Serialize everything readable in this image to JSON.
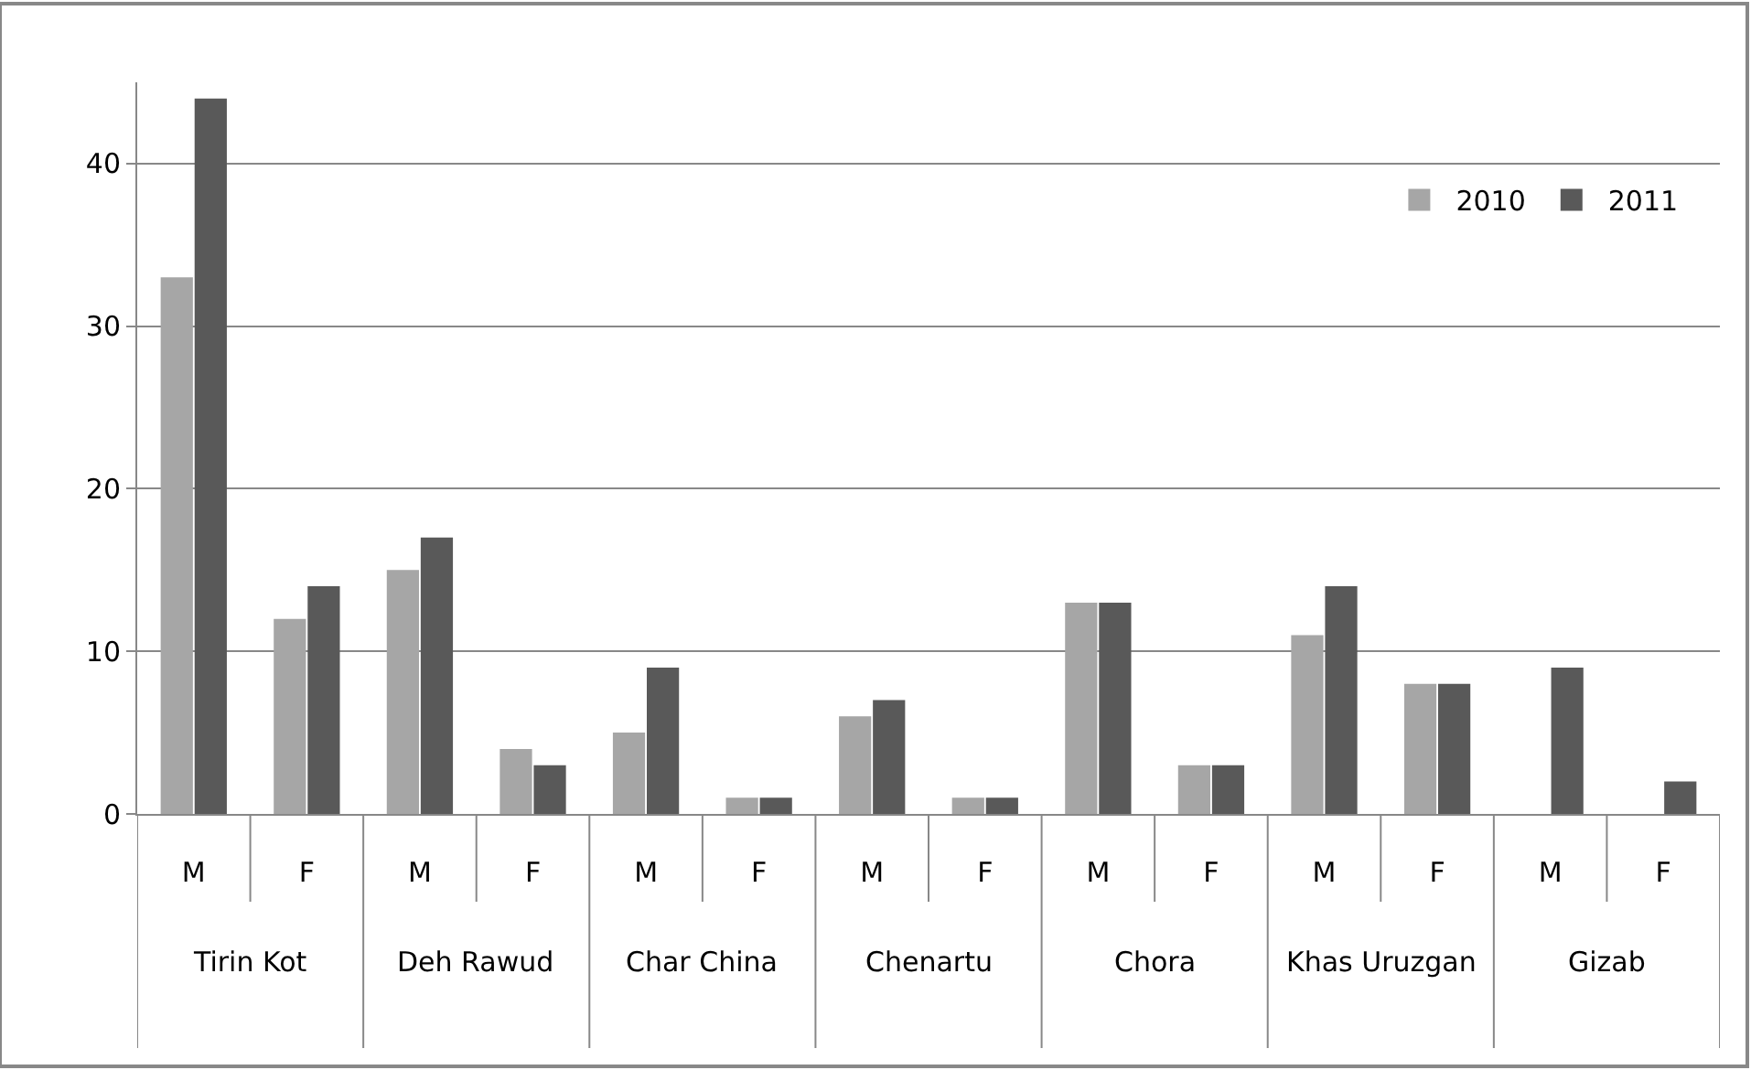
{
  "chart_data": {
    "type": "bar",
    "categories": [
      "M",
      "F",
      "M",
      "F",
      "M",
      "F",
      "M",
      "F",
      "M",
      "F",
      "M",
      "F",
      "M",
      "F"
    ],
    "series": [
      {
        "name": "2010",
        "color": "#a6a6a6",
        "values": [
          33,
          12,
          15,
          4,
          5,
          1,
          6,
          1,
          13,
          3,
          11,
          8,
          null,
          null
        ]
      },
      {
        "name": "2011",
        "color": "#595959",
        "values": [
          44,
          14,
          17,
          3,
          9,
          1,
          7,
          1,
          13,
          3,
          14,
          8,
          9,
          2
        ]
      }
    ],
    "annotations": [
      "Tirin Kot",
      "Deh Rawud",
      "Char China",
      "Chenartu",
      "Chora",
      "Khas Uruzgan",
      "Gizab"
    ],
    "ylim": [
      0,
      45
    ],
    "yticks": [
      0,
      10,
      20,
      30,
      40
    ],
    "grid": "y",
    "legend": "top right"
  }
}
